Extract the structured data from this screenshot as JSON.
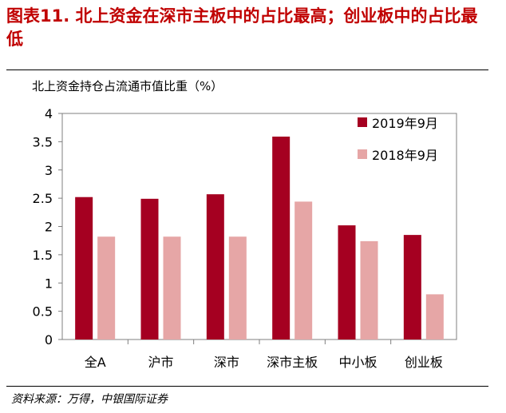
{
  "figure": {
    "title": "图表11. 北上资金在深市主板中的占比最高；创业板中的占比最低",
    "source": "资料来源：万得，中银国际证券"
  },
  "colors": {
    "title": "#c00000",
    "series_2019": "#a50021",
    "series_2018": "#e6a6a6"
  },
  "chart_data": {
    "type": "bar",
    "title": "北上资金持仓占流通市值比重（%）",
    "xlabel": "",
    "ylabel": "",
    "categories": [
      "全A",
      "沪市",
      "深市",
      "深市主板",
      "中小板",
      "创业板"
    ],
    "series": [
      {
        "name": "2019年9月",
        "values": [
          2.52,
          2.49,
          2.57,
          3.59,
          2.02,
          1.85
        ]
      },
      {
        "name": "2018年9月",
        "values": [
          1.82,
          1.82,
          1.82,
          2.44,
          1.74,
          0.8
        ]
      }
    ],
    "ylim": [
      0,
      4
    ],
    "yticks": [
      "0",
      "0.5",
      "1",
      "1.5",
      "2",
      "2.5",
      "3",
      "3.5",
      "4"
    ],
    "grid": false,
    "legend": "top-right"
  }
}
